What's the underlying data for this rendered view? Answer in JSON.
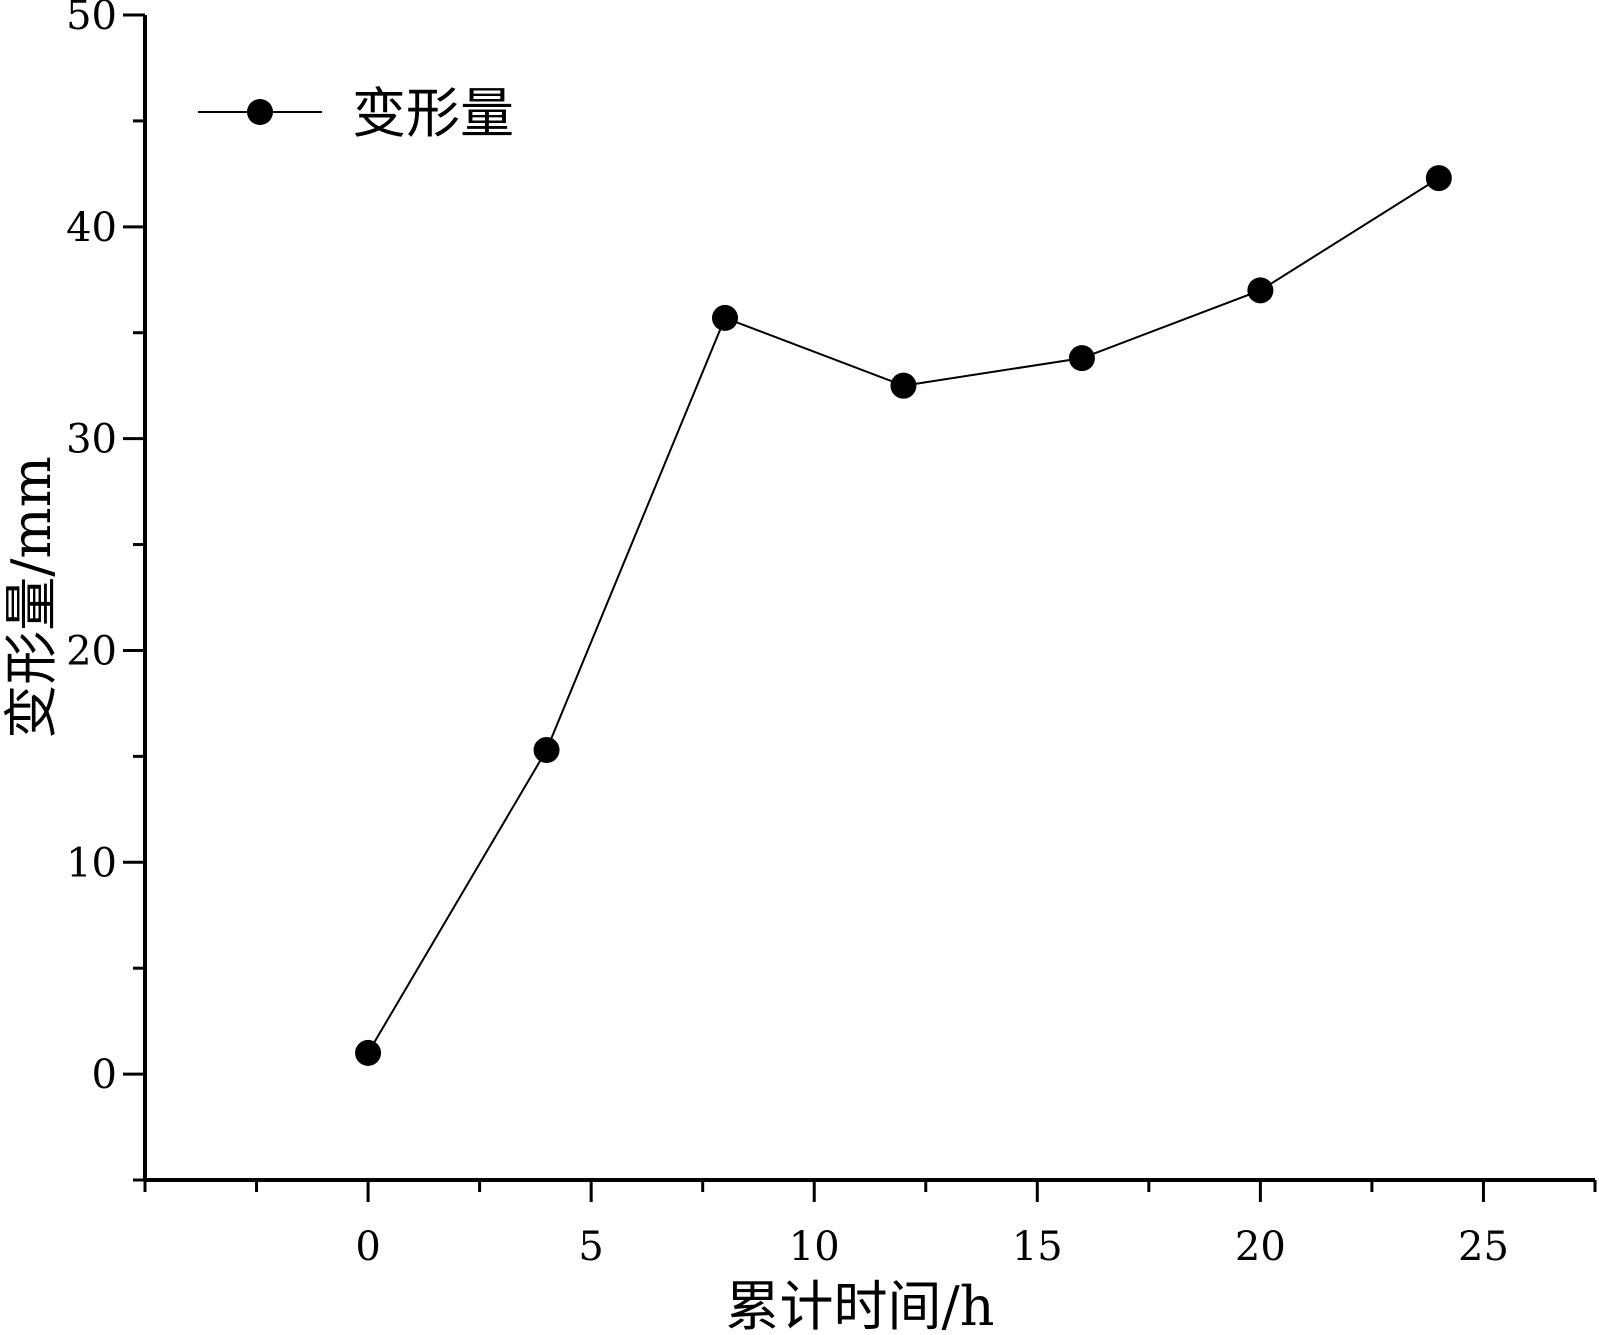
{
  "chart_data": {
    "type": "line",
    "title": "",
    "xlabel": "累计时间/h",
    "ylabel": "变形量/mm",
    "xlim": [
      -5,
      27.5
    ],
    "ylim": [
      -5,
      50
    ],
    "xticks": [
      0,
      5,
      10,
      15,
      20,
      25
    ],
    "yticks": [
      0,
      10,
      20,
      30,
      40,
      50
    ],
    "grid": false,
    "legend": {
      "position": "top-left"
    },
    "series": [
      {
        "name": "变形量",
        "color": "#000000",
        "marker": "circle",
        "x": [
          0,
          4,
          8,
          12,
          16,
          20,
          24
        ],
        "y": [
          1.0,
          15.3,
          35.7,
          32.5,
          33.8,
          37.0,
          42.3
        ]
      }
    ]
  }
}
